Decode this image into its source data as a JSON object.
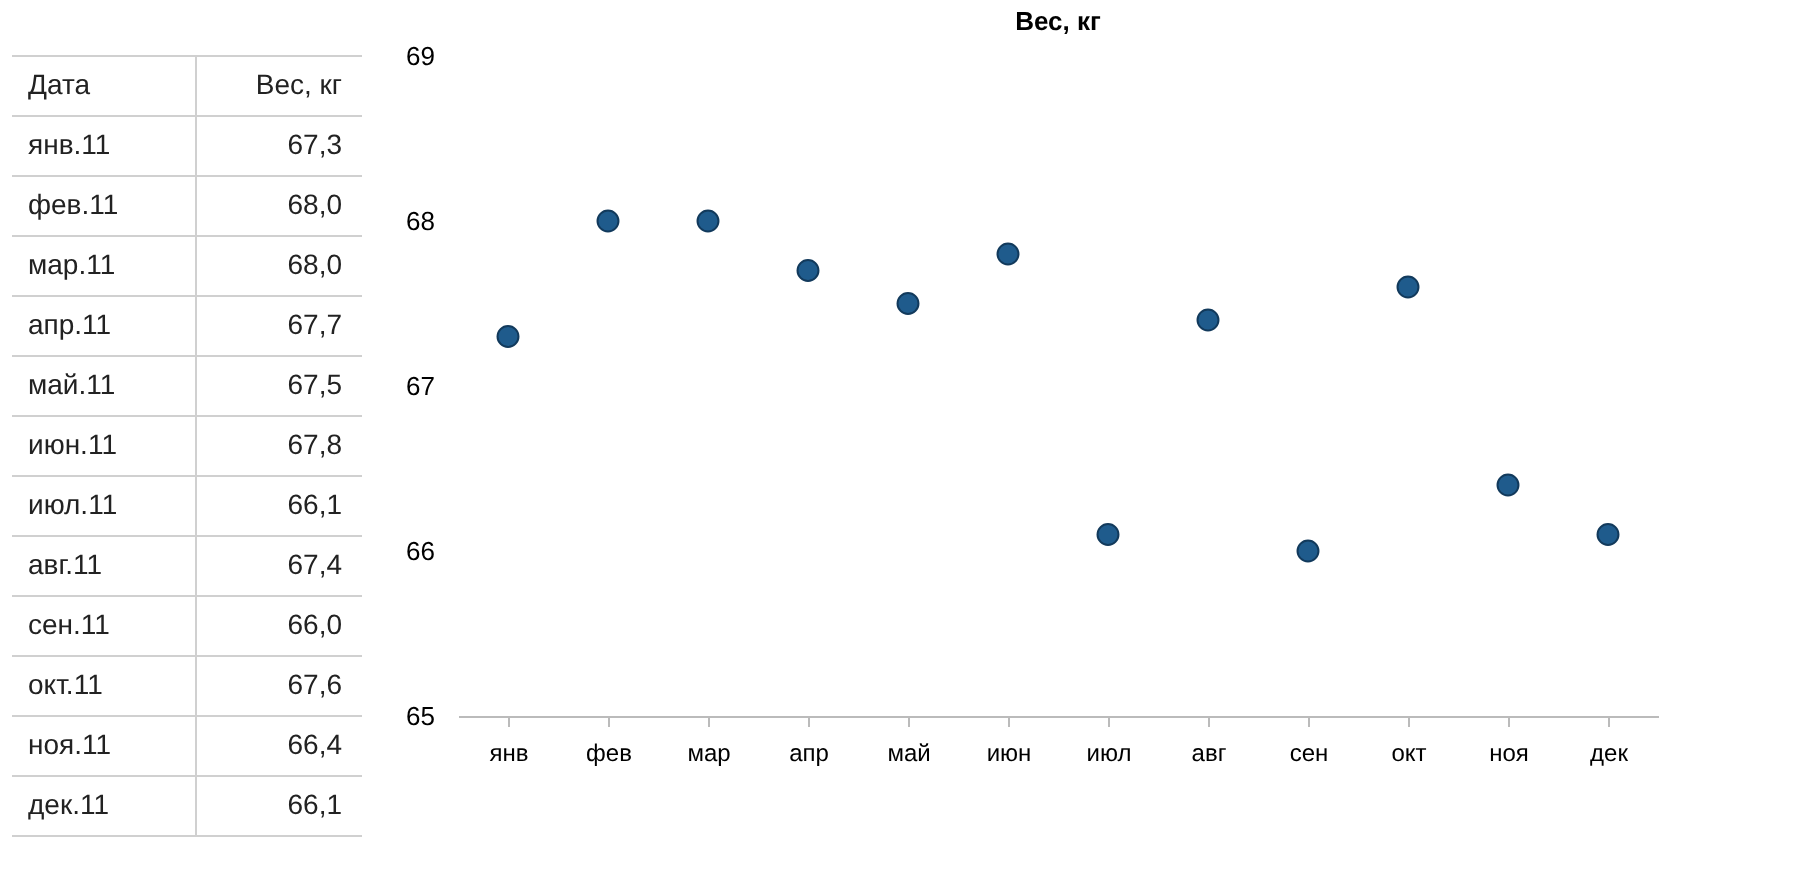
{
  "chart_data": [
    {
      "type": "other",
      "xlabel": "Дата",
      "ylabel": "Вес, кг",
      "categories": [
        "янв.11",
        "фев.11",
        "мар.11",
        "апр.11",
        "май.11",
        "июн.11",
        "июл.11",
        "авг.11",
        "сен.11",
        "окт.11",
        "ноя.11",
        "дек.11"
      ],
      "values": [
        67.3,
        68.0,
        68.0,
        67.7,
        67.5,
        67.8,
        66.1,
        67.4,
        66.0,
        67.6,
        66.4,
        66.1
      ],
      "value_labels": [
        "67,3",
        "68,0",
        "68,0",
        "67,7",
        "67,5",
        "67,8",
        "66,1",
        "67,4",
        "66,0",
        "67,6",
        "66,4",
        "66,1"
      ]
    },
    {
      "type": "scatter",
      "title": "Вес, кг",
      "categories": [
        "янв",
        "фев",
        "мар",
        "апр",
        "май",
        "июн",
        "июл",
        "авг",
        "сен",
        "окт",
        "ноя",
        "дек"
      ],
      "values": [
        67.3,
        68.0,
        68.0,
        67.7,
        67.5,
        67.8,
        66.1,
        67.4,
        66.0,
        67.6,
        66.4,
        66.1
      ],
      "color": "#1f5b8c",
      "marker": "circle",
      "ylim": [
        65,
        69
      ],
      "yticks": [
        65,
        66,
        67,
        68,
        69
      ],
      "grid": false
    }
  ]
}
